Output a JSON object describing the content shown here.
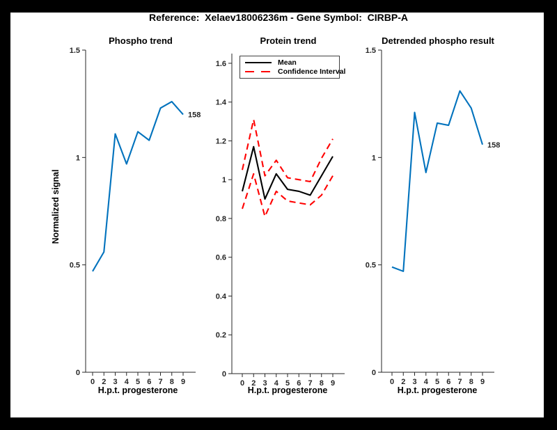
{
  "figure": {
    "title": "Reference:  Xelaev18006236m - Gene Symbol:  CIRBP-A",
    "background_color": "#000000",
    "canvas_color": "#ffffff",
    "axis_color": "#262626"
  },
  "chart_data": [
    {
      "type": "line",
      "title": "Phospho trend",
      "xlabel": "H.p.t. progesterone",
      "ylabel": "Normalized signal",
      "categories": [
        "0",
        "2",
        "3",
        "4",
        "5",
        "6",
        "7",
        "8",
        "9"
      ],
      "yticks": [
        0,
        0.5,
        1,
        1.5
      ],
      "ylim": [
        0,
        1.5
      ],
      "grid": false,
      "series": [
        {
          "name": "phospho-signal",
          "color": "#0072BD",
          "style": "solid",
          "values": [
            0.47,
            0.56,
            1.11,
            0.97,
            1.12,
            1.08,
            1.23,
            1.26,
            1.2
          ]
        }
      ],
      "end_label": "158"
    },
    {
      "type": "line",
      "title": "Protein trend",
      "xlabel": "H.p.t. progesterone",
      "ylabel": "",
      "categories": [
        "0",
        "2",
        "3",
        "4",
        "5",
        "6",
        "7",
        "8",
        "9"
      ],
      "yticks": [
        0,
        0.2,
        0.4,
        0.6,
        0.8,
        1,
        1.2,
        1.4,
        1.6
      ],
      "ylim": [
        0,
        1.65
      ],
      "grid": false,
      "legend": [
        "Mean",
        "Confidence Interval"
      ],
      "legend_position": "northwest",
      "series": [
        {
          "name": "mean",
          "color": "#000000",
          "style": "solid",
          "values": [
            0.94,
            1.17,
            0.9,
            1.03,
            0.95,
            0.94,
            0.92,
            1.02,
            1.12
          ]
        },
        {
          "name": "ci-upper",
          "color": "#FF0000",
          "style": "dashed",
          "values": [
            1.05,
            1.31,
            1.02,
            1.1,
            1.01,
            1.0,
            0.99,
            1.11,
            1.21
          ]
        },
        {
          "name": "ci-lower",
          "color": "#FF0000",
          "style": "dashed",
          "values": [
            0.85,
            1.03,
            0.81,
            0.94,
            0.89,
            0.88,
            0.87,
            0.92,
            1.02
          ]
        }
      ]
    },
    {
      "type": "line",
      "title": "Detrended phospho result",
      "xlabel": "H.p.t. progesterone",
      "ylabel": "",
      "categories": [
        "0",
        "2",
        "3",
        "4",
        "5",
        "6",
        "7",
        "8",
        "9"
      ],
      "yticks": [
        0,
        0.5,
        1,
        1.5
      ],
      "ylim": [
        0,
        1.5
      ],
      "grid": false,
      "series": [
        {
          "name": "detrended-phospho-signal",
          "color": "#0072BD",
          "style": "solid",
          "values": [
            0.49,
            0.47,
            1.21,
            0.93,
            1.16,
            1.15,
            1.31,
            1.23,
            1.06
          ]
        }
      ],
      "end_label": "158"
    }
  ]
}
